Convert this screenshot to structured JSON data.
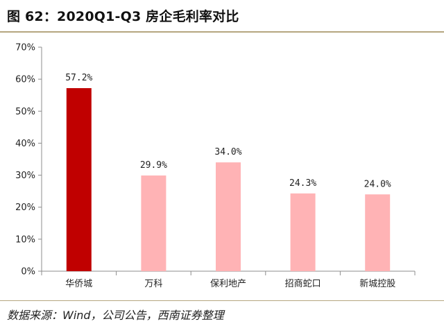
{
  "figure": {
    "title": "图 62：2020Q1-Q3 房企毛利率对比",
    "source": "数据来源：Wind，公司公告，西南证券整理"
  },
  "colors": {
    "highlight_bar": "#c00000",
    "bar": "#ffb3b5",
    "rule": "#b5a67f",
    "axis": "#8c8c8c"
  },
  "chart_data": {
    "type": "bar",
    "categories": [
      "华侨城",
      "万科",
      "保利地产",
      "招商蛇口",
      "新城控股"
    ],
    "values": [
      57.2,
      29.9,
      34.0,
      24.3,
      24.0
    ],
    "value_labels": [
      "57.2%",
      "29.9%",
      "34.0%",
      "24.3%",
      "24.0%"
    ],
    "highlight_index": 0,
    "ylim": [
      0,
      70
    ],
    "yticks": [
      0,
      10,
      20,
      30,
      40,
      50,
      60,
      70
    ],
    "ytick_labels": [
      "0%",
      "10%",
      "20%",
      "30%",
      "40%",
      "50%",
      "60%",
      "70%"
    ],
    "grid": false,
    "legend": "none"
  }
}
